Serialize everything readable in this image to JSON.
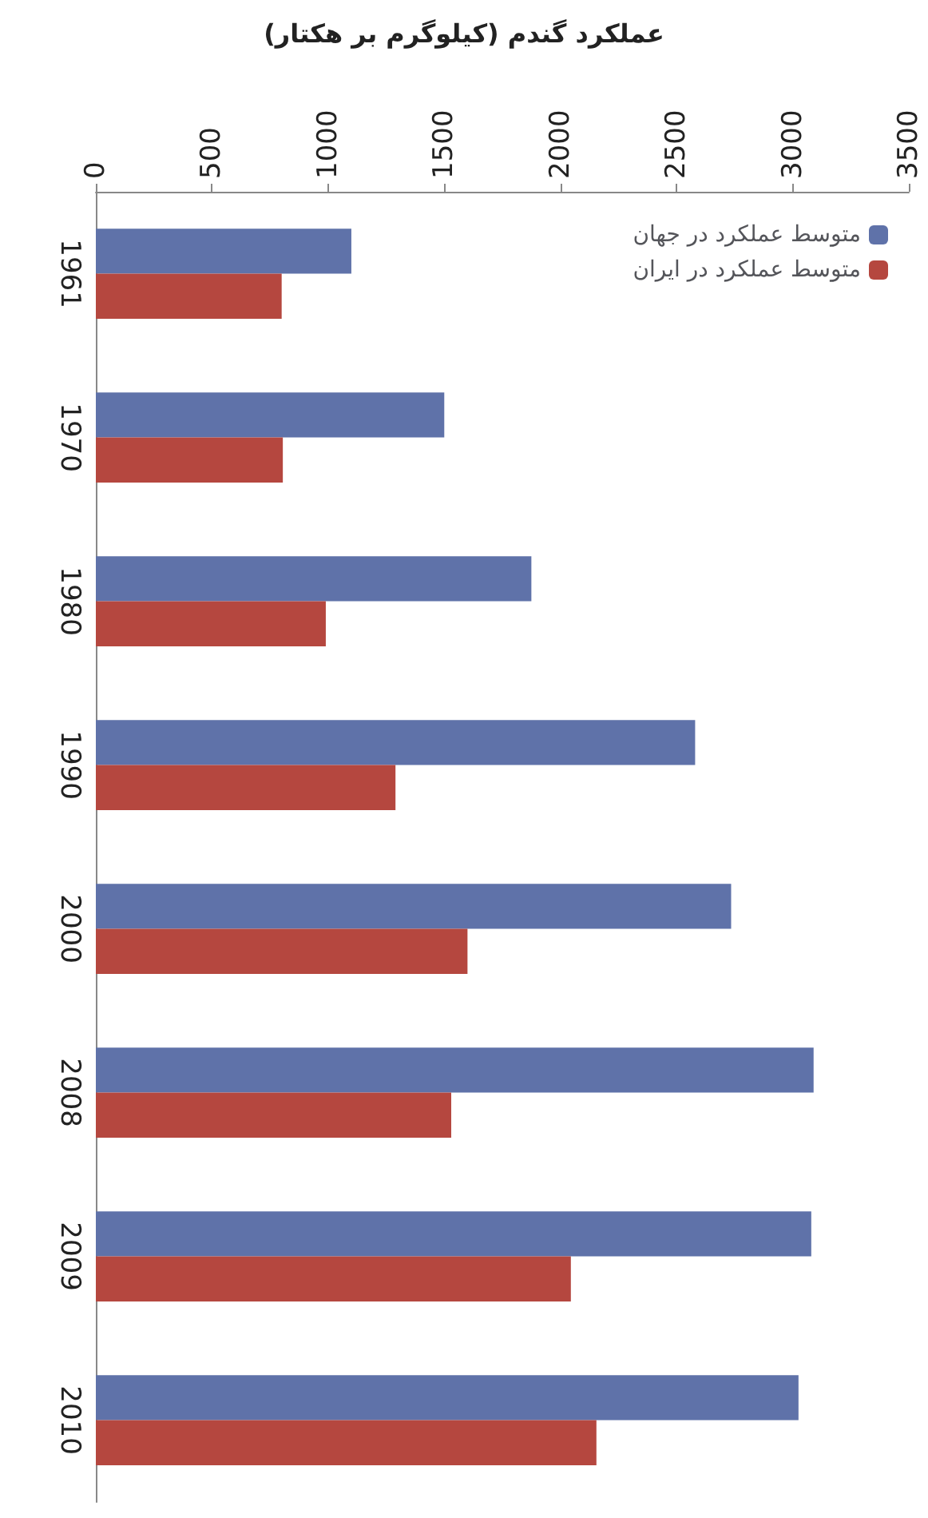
{
  "chart_data": {
    "type": "bar",
    "orientation": "horizontal",
    "title": "عملکرد گندم (کیلوگرم بر هکتار)",
    "categories": [
      "1961",
      "1970",
      "1980",
      "1990",
      "2000",
      "2008",
      "2009",
      "2010"
    ],
    "series": [
      {
        "name": "متوسط عملکرد در جهان",
        "color": "#5f72a9",
        "values": [
          1100,
          1500,
          1875,
          2580,
          2735,
          3090,
          3080,
          3025
        ]
      },
      {
        "name": "متوسط عملکرد در ایران",
        "color": "#b5473f",
        "values": [
          800,
          805,
          990,
          1290,
          1600,
          1530,
          2045,
          2155
        ]
      }
    ],
    "xlim": [
      0,
      3500
    ],
    "xticks": [
      0,
      500,
      1000,
      1500,
      2000,
      2500,
      3000,
      3500
    ],
    "grid": false,
    "legend": "top right"
  }
}
